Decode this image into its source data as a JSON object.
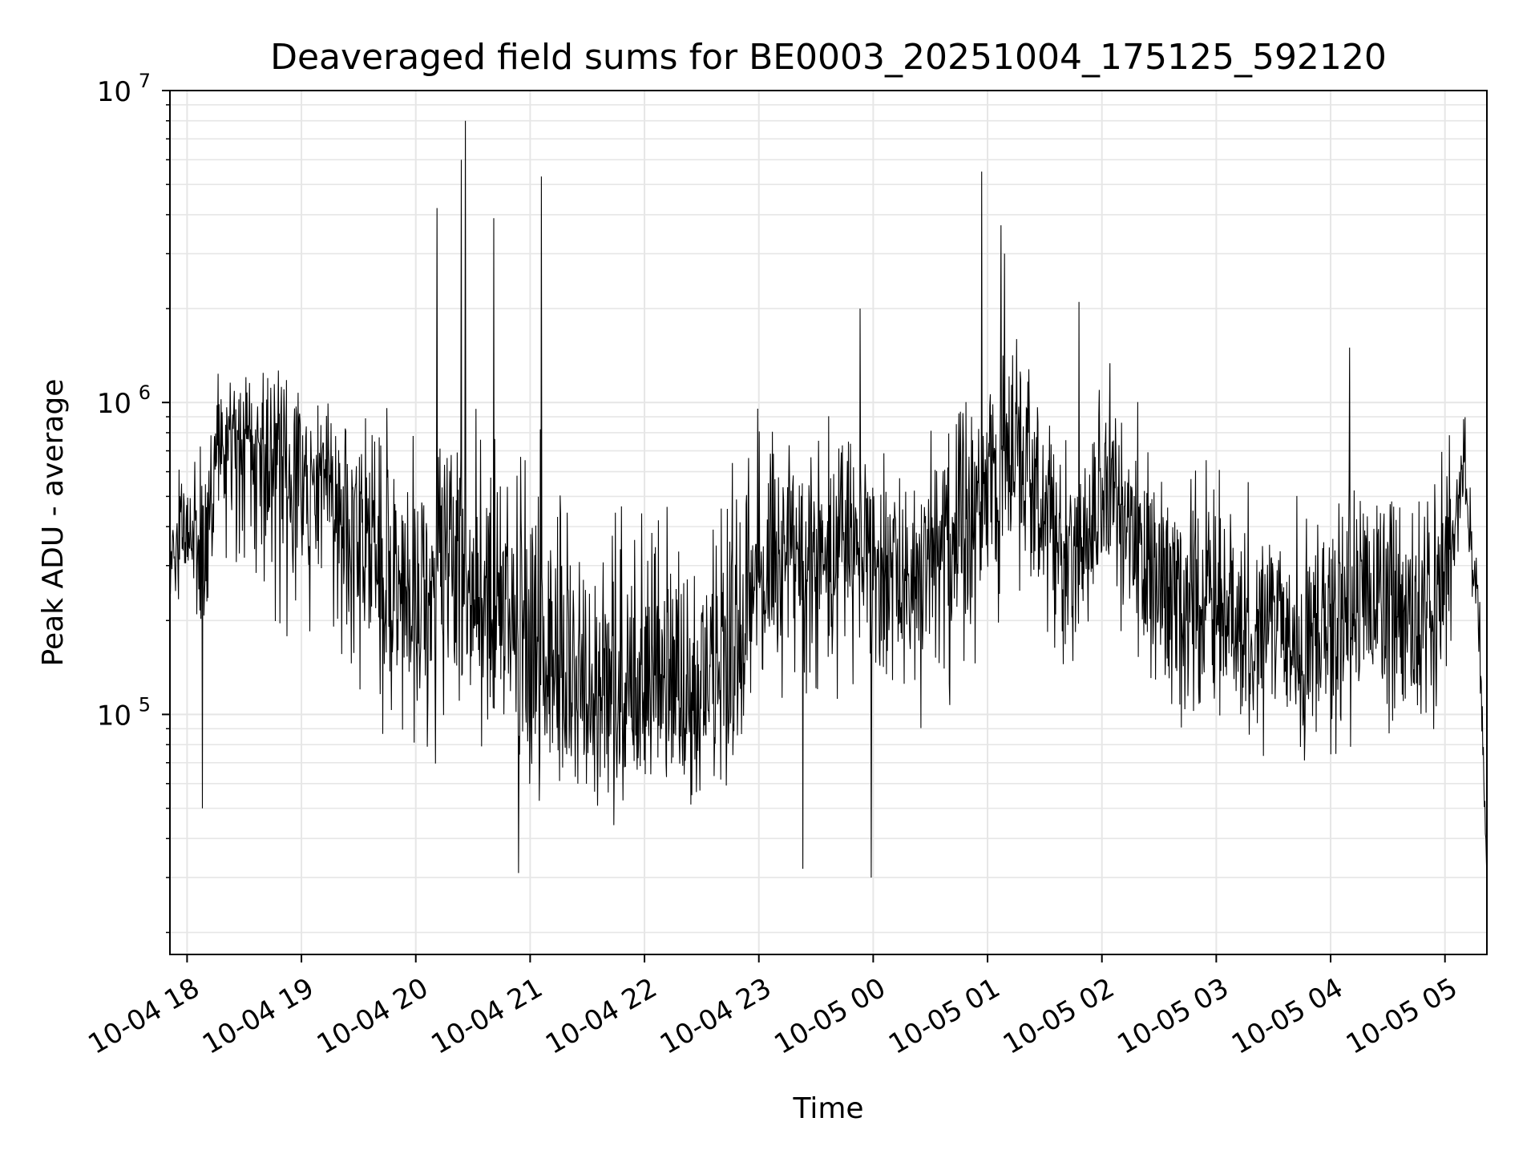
{
  "chart_data": {
    "type": "line",
    "title": "Deaveraged field sums for BE0003_20251004_175125_592120",
    "xlabel": "Time",
    "ylabel": "Peak ADU - average",
    "yscale": "log",
    "ylim": [
      17000,
      10000000
    ],
    "xlim": [
      "2025-10-04 17:51",
      "2025-10-05 05:22"
    ],
    "grid": true,
    "line_color": "#000000",
    "x_ticks": [
      "10-04 18",
      "10-04 19",
      "10-04 20",
      "10-04 21",
      "10-04 22",
      "10-04 23",
      "10-05 00",
      "10-05 01",
      "10-05 02",
      "10-05 03",
      "10-05 04",
      "10-05 05"
    ],
    "y_ticks": [
      {
        "base": "10",
        "exp": "5",
        "value": 100000
      },
      {
        "base": "10",
        "exp": "6",
        "value": 1000000
      },
      {
        "base": "10",
        "exp": "7",
        "value": 10000000
      }
    ],
    "series": [
      {
        "x": [
          "2025-10-04 17:51",
          "2025-10-04 18:00",
          "2025-10-04 18:10",
          "2025-10-04 18:15",
          "2025-10-04 18:30",
          "2025-10-04 18:45",
          "2025-10-04 19:00",
          "2025-10-04 19:15",
          "2025-10-04 19:30",
          "2025-10-04 19:45",
          "2025-10-04 20:00",
          "2025-10-04 20:15",
          "2025-10-04 20:30",
          "2025-10-04 20:45",
          "2025-10-04 21:00",
          "2025-10-04 21:15",
          "2025-10-04 21:30",
          "2025-10-04 21:45",
          "2025-10-04 22:00",
          "2025-10-04 22:15",
          "2025-10-04 22:30",
          "2025-10-04 22:45",
          "2025-10-04 23:00",
          "2025-10-04 23:15",
          "2025-10-04 23:30",
          "2025-10-04 23:45",
          "2025-10-05 00:00",
          "2025-10-05 00:15",
          "2025-10-05 00:30",
          "2025-10-05 00:45",
          "2025-10-05 01:00",
          "2025-10-05 01:15",
          "2025-10-05 01:30",
          "2025-10-05 01:45",
          "2025-10-05 02:00",
          "2025-10-05 02:15",
          "2025-10-05 02:30",
          "2025-10-05 02:45",
          "2025-10-05 03:00",
          "2025-10-05 03:15",
          "2025-10-05 03:30",
          "2025-10-05 03:45",
          "2025-10-05 04:00",
          "2025-10-05 04:15",
          "2025-10-05 04:30",
          "2025-10-05 04:45",
          "2025-10-05 05:00",
          "2025-10-05 05:10",
          "2025-10-05 05:18",
          "2025-10-05 05:22"
        ],
        "center": [
          300000,
          400000,
          380000,
          700000,
          750000,
          700000,
          600000,
          550000,
          380000,
          300000,
          250000,
          260000,
          250000,
          220000,
          150000,
          130000,
          120000,
          110000,
          110000,
          110000,
          110000,
          115000,
          250000,
          330000,
          300000,
          320000,
          320000,
          300000,
          320000,
          360000,
          450000,
          700000,
          450000,
          300000,
          600000,
          400000,
          280000,
          230000,
          220000,
          190000,
          170000,
          160000,
          200000,
          230000,
          220000,
          200000,
          280000,
          600000,
          180000,
          30000
        ],
        "low": [
          180000,
          250000,
          100000,
          350000,
          150000,
          150000,
          150000,
          120000,
          80000,
          60000,
          50000,
          60000,
          60000,
          70000,
          45000,
          40000,
          40000,
          40000,
          40000,
          40000,
          38000,
          40000,
          90000,
          90000,
          90000,
          100000,
          100000,
          90000,
          70000,
          80000,
          100000,
          200000,
          150000,
          100000,
          150000,
          120000,
          90000,
          70000,
          70000,
          60000,
          55000,
          50000,
          60000,
          70000,
          65000,
          60000,
          70000,
          400000,
          120000,
          30000
        ],
        "high": [
          550000,
          900000,
          900000,
          1500000,
          1600000,
          1700000,
          1500000,
          1400000,
          1300000,
          1300000,
          1200000,
          1300000,
          1600000,
          1500000,
          1300000,
          900000,
          750000,
          800000,
          800000,
          700000,
          650000,
          700000,
          1300000,
          1400000,
          1200000,
          1300000,
          1200000,
          1100000,
          1200000,
          1500000,
          1900000,
          2500000,
          1400000,
          1000000,
          1700000,
          1200000,
          900000,
          800000,
          900000,
          800000,
          650000,
          700000,
          800000,
          900000,
          900000,
          900000,
          1000000,
          1200000,
          400000,
          40000
        ]
      }
    ],
    "spikes": [
      {
        "x": "2025-10-04 18:08",
        "y": 50000
      },
      {
        "x": "2025-10-04 20:11",
        "y": 4200000
      },
      {
        "x": "2025-10-04 20:24",
        "y": 6000000
      },
      {
        "x": "2025-10-04 20:26",
        "y": 8000000
      },
      {
        "x": "2025-10-04 20:41",
        "y": 3900000
      },
      {
        "x": "2025-10-04 20:54",
        "y": 31000
      },
      {
        "x": "2025-10-04 21:06",
        "y": 5300000
      },
      {
        "x": "2025-10-04 23:23",
        "y": 32000
      },
      {
        "x": "2025-10-04 23:53",
        "y": 2000000
      },
      {
        "x": "2025-10-04 23:59",
        "y": 30000
      },
      {
        "x": "2025-10-05 00:57",
        "y": 5500000
      },
      {
        "x": "2025-10-05 01:07",
        "y": 3700000
      },
      {
        "x": "2025-10-05 01:09",
        "y": 3000000
      },
      {
        "x": "2025-10-05 01:48",
        "y": 2100000
      },
      {
        "x": "2025-10-05 04:10",
        "y": 1500000
      }
    ]
  }
}
